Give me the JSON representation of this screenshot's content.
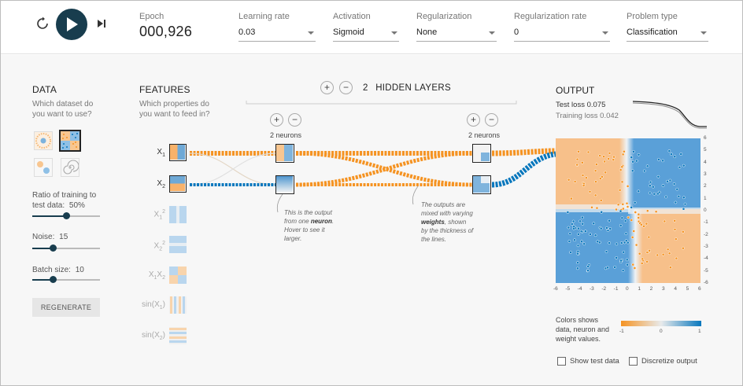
{
  "header": {
    "epoch_label": "Epoch",
    "epoch_value": "000,926",
    "learning_rate_label": "Learning rate",
    "learning_rate_value": "0.03",
    "activation_label": "Activation",
    "activation_value": "Sigmoid",
    "regularization_label": "Regularization",
    "regularization_value": "None",
    "reg_rate_label": "Regularization rate",
    "reg_rate_value": "0",
    "problem_type_label": "Problem type",
    "problem_type_value": "Classification",
    "icons": [
      "reset-icon",
      "play-icon",
      "step-icon"
    ]
  },
  "data_panel": {
    "title": "DATA",
    "subtitle": "Which dataset do you want to use?",
    "ratio_label": "Ratio of training to",
    "ratio_label2": "test data:",
    "ratio_value": "50%",
    "ratio_fraction": 0.5,
    "noise_label": "Noise:",
    "noise_value": "15",
    "noise_fraction": 0.3,
    "batch_label": "Batch size:",
    "batch_value": "10",
    "batch_fraction": 0.3,
    "regenerate_label": "REGENERATE",
    "datasets": [
      "circle",
      "xor",
      "gaussian",
      "spiral"
    ],
    "selected_dataset": "xor"
  },
  "features": {
    "title": "FEATURES",
    "subtitle": "Which properties do you want to feed in?",
    "items": [
      {
        "main": "X",
        "sub": "1",
        "sup": "",
        "active": true
      },
      {
        "main": "X",
        "sub": "2",
        "sup": "",
        "active": true
      },
      {
        "main": "X",
        "sub": "1",
        "sup": "2",
        "active": false
      },
      {
        "main": "X",
        "sub": "2",
        "sup": "2",
        "active": false
      },
      {
        "main": "X",
        "sub": "1",
        "main2": "X",
        "sub2": "2",
        "active": false
      },
      {
        "main": "sin(X",
        "sub": "1",
        "tail": ")",
        "active": false
      },
      {
        "main": "sin(X",
        "sub": "2",
        "tail": ")",
        "active": false
      }
    ]
  },
  "network": {
    "hidden_layers_count": "2",
    "hidden_layers_label": "HIDDEN LAYERS",
    "layer1_neurons": "2 neurons",
    "layer2_neurons": "2 neurons",
    "annot1_a": "This is the output",
    "annot1_b": "from one",
    "annot1_bold": "neuron",
    "annot1_c": ".",
    "annot1_d": "Hover to see it",
    "annot1_e": "larger.",
    "annot2_a": "The outputs are",
    "annot2_b": "mixed with varying",
    "annot2_bold": "weights",
    "annot2_c": ", shown",
    "annot2_d": "by the thickness of",
    "annot2_e": "the lines.",
    "plus": "+",
    "minus": "−"
  },
  "output": {
    "title": "OUTPUT",
    "test_loss_label": "Test loss",
    "test_loss_value": "0.075",
    "train_loss_label": "Training loss",
    "train_loss_value": "0.042",
    "x_ticks": [
      "-6",
      "-5",
      "-4",
      "-3",
      "-2",
      "-1",
      "0",
      "1",
      "2",
      "3",
      "4",
      "5",
      "6"
    ],
    "y_ticks": [
      "6",
      "5",
      "4",
      "3",
      "2",
      "1",
      "0",
      "-1",
      "-2",
      "-3",
      "-4",
      "-5",
      "-6"
    ],
    "legend_text": "Colors shows data, neuron and weight values.",
    "legend_min": "-1",
    "legend_mid": "0",
    "legend_max": "1",
    "show_test_label": "Show test data",
    "discretize_label": "Discretize output",
    "colors": {
      "orange": "#f59322",
      "blue": "#0877bd",
      "dark": "#183d4e"
    }
  }
}
